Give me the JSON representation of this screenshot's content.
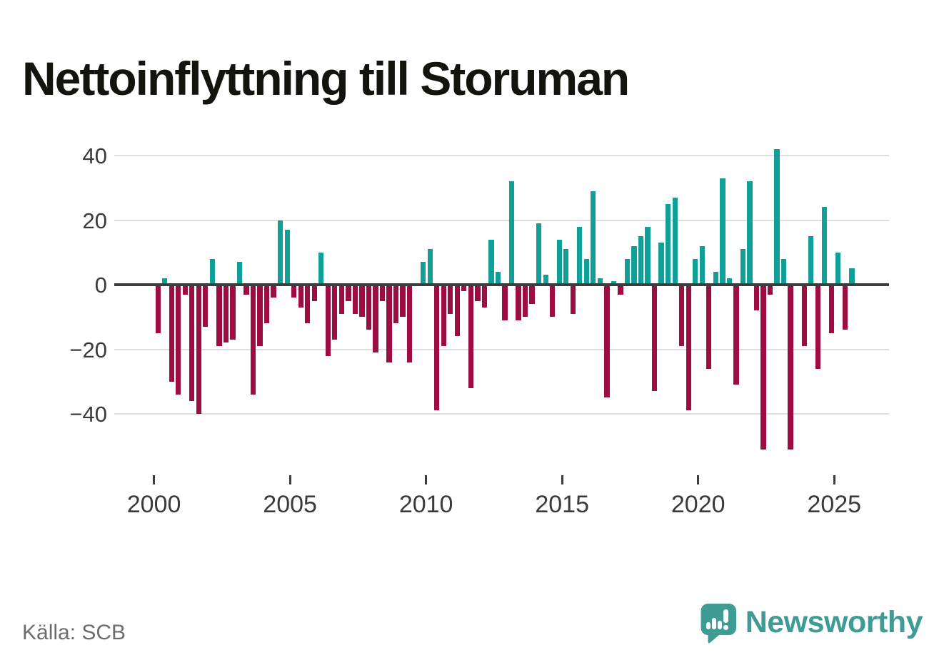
{
  "title": "Nettoinflyttning till Storuman",
  "source": "Källa: SCB",
  "brand": {
    "name": "Newsworthy",
    "color": "#3e9c95",
    "icon": "bar-chart-speech-bubble"
  },
  "colors": {
    "positive_bar": "#11a098",
    "negative_bar": "#9e0d42",
    "zero_line": "#3d3d3d",
    "gridline": "#dedede",
    "axis_label": "#3a3a3a",
    "source_text": "#6d6d6d",
    "title_text": "#14140f"
  },
  "chart_data": {
    "type": "bar",
    "title": "Nettoinflyttning till Storuman",
    "unit": "persons (net migration per quarter)",
    "start_quarter": "2000-Q1",
    "frequency": "quarterly",
    "values": [
      -15,
      2,
      -30,
      -34,
      -3,
      -36,
      -40,
      -13,
      8,
      -19,
      -18,
      -17,
      7,
      -3,
      -34,
      -19,
      -12,
      -4,
      20,
      17,
      -4,
      -7,
      -12,
      -5,
      10,
      -22,
      -17,
      -9,
      -5,
      -9,
      -10,
      -14,
      -21,
      -5,
      -24,
      -12,
      -10,
      -24,
      0,
      7,
      11,
      -39,
      -19,
      -9,
      -16,
      -2,
      -32,
      -5,
      -7,
      14,
      4,
      -11,
      32,
      -11,
      -10,
      -6,
      19,
      3,
      -10,
      14,
      11,
      -9,
      18,
      8,
      29,
      2,
      -35,
      1,
      -3,
      8,
      12,
      15,
      18,
      -33,
      13,
      25,
      27,
      -19,
      -39,
      8,
      12,
      -26,
      4,
      33,
      2,
      -31,
      11,
      32,
      -8,
      -51,
      -3,
      42,
      8,
      -51,
      0,
      -19,
      15,
      -26,
      24,
      -15,
      10,
      -14,
      5
    ],
    "ylim": [
      -55,
      45
    ],
    "yticks": [
      40,
      20,
      0,
      -20,
      -40
    ],
    "xticks": [
      2000,
      2005,
      2010,
      2015,
      2020,
      2025
    ],
    "grid": true,
    "legend": "none",
    "positive_color": "#11a098",
    "negative_color": "#9e0d42"
  }
}
